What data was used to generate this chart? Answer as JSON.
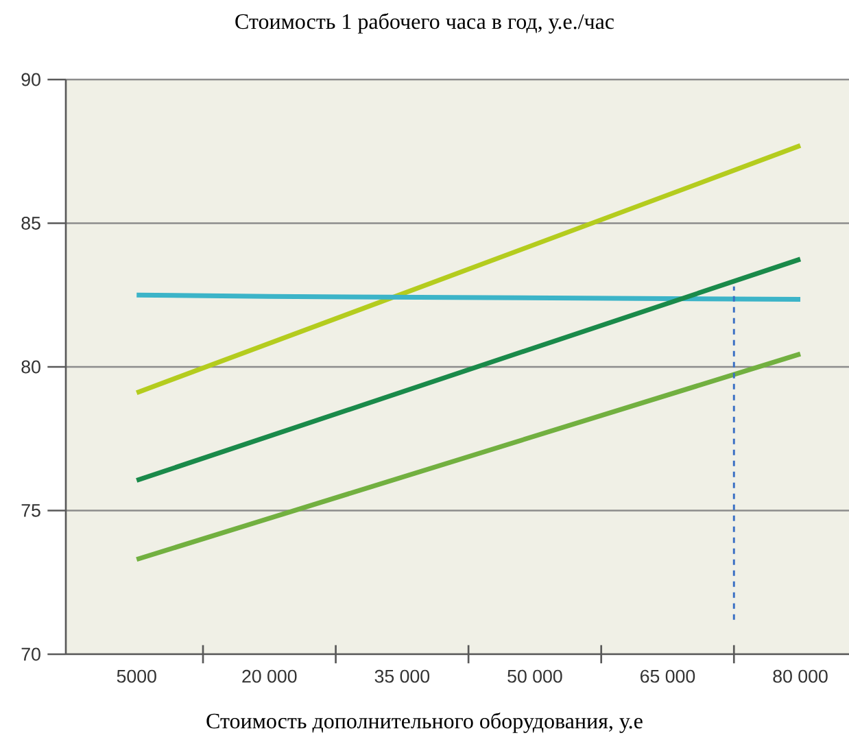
{
  "chart_data": {
    "type": "line",
    "title": "Стоимость 1 рабочего часа в год, у.е./час",
    "xlabel": "Стоимость дополнительного оборудования, у.е",
    "xlim": [
      -3000,
      85500
    ],
    "ylim": [
      70,
      90
    ],
    "xticks": [
      {
        "value": 5000,
        "label": "5000"
      },
      {
        "value": 20000,
        "label": "20 000"
      },
      {
        "value": 35000,
        "label": "35 000"
      },
      {
        "value": 50000,
        "label": "50 000"
      },
      {
        "value": 65000,
        "label": "65 000"
      },
      {
        "value": 80000,
        "label": "80 000"
      },
      {
        "value": 12500,
        "label": null
      },
      {
        "value": 27500,
        "label": null
      },
      {
        "value": 42500,
        "label": null
      },
      {
        "value": 57500,
        "label": null
      },
      {
        "value": 72500,
        "label": null
      }
    ],
    "yticks": [
      70,
      75,
      80,
      85,
      90
    ],
    "grid": "y",
    "marker": "none",
    "line_style": "solid",
    "series": [
      {
        "color": "#b4cc1e",
        "x": [
          5000,
          80000
        ],
        "values": [
          79.1,
          87.7
        ]
      },
      {
        "color": "#3cb4c8",
        "x": [
          5000,
          20000,
          80000
        ],
        "values": [
          82.5,
          82.45,
          82.35
        ]
      },
      {
        "color": "#1a8a4a",
        "x": [
          5000,
          80000
        ],
        "values": [
          76.05,
          83.75
        ]
      },
      {
        "color": "#72b040",
        "x": [
          5000,
          80000
        ],
        "values": [
          73.3,
          80.45
        ]
      },
      {
        "color": "#3a6fc4",
        "x": [
          72500,
          72500
        ],
        "values": [
          71.2,
          82.8
        ],
        "line_style": "dashed"
      }
    ]
  }
}
